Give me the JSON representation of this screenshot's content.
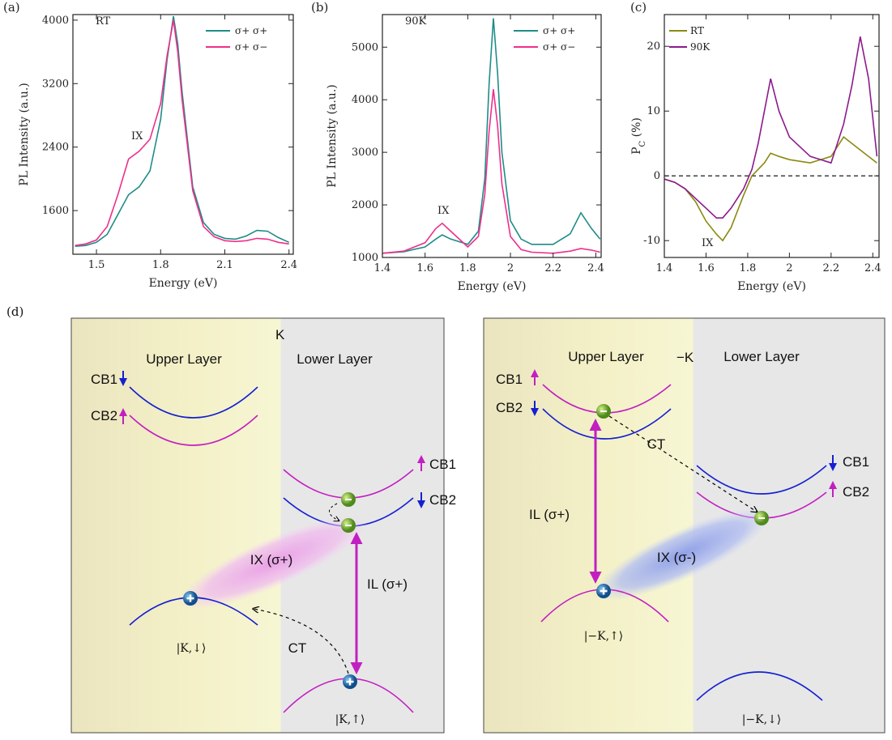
{
  "chart_data": [
    {
      "type": "line",
      "panel_label": "(a)",
      "x_label": "Energy (eV)",
      "y_label": "PL Intensity (a.u.)",
      "annotations": [
        "RT",
        "IX"
      ],
      "legend": "upper right",
      "xlim": [
        1.39,
        2.42
      ],
      "xticks": [
        1.5,
        1.8,
        2.1,
        2.4
      ],
      "ylim": [
        1050,
        4070
      ],
      "yticks": [
        1600,
        2400,
        3200,
        4000
      ],
      "x": [
        1.4,
        1.45,
        1.5,
        1.55,
        1.6,
        1.65,
        1.7,
        1.75,
        1.8,
        1.83,
        1.86,
        1.88,
        1.9,
        1.95,
        2.0,
        2.05,
        2.1,
        2.15,
        2.2,
        2.25,
        2.3,
        2.35,
        2.4
      ],
      "series": [
        {
          "name": "σ+ σ+",
          "color": "#1f8c88",
          "values": [
            1150,
            1160,
            1200,
            1300,
            1550,
            1800,
            1900,
            2100,
            2750,
            3500,
            4050,
            3700,
            3100,
            1900,
            1450,
            1300,
            1250,
            1240,
            1280,
            1350,
            1340,
            1260,
            1200
          ]
        },
        {
          "name": "σ+ σ−",
          "color": "#ee2f8c",
          "values": [
            1160,
            1180,
            1230,
            1400,
            1800,
            2250,
            2350,
            2500,
            2950,
            3550,
            4000,
            3600,
            3000,
            1850,
            1400,
            1270,
            1220,
            1210,
            1220,
            1250,
            1240,
            1200,
            1180
          ]
        }
      ]
    },
    {
      "type": "line",
      "panel_label": "(b)",
      "x_label": "Energy (eV)",
      "y_label": "PL Intensity (a.u.)",
      "annotations": [
        "90K",
        "IX"
      ],
      "legend": "upper right",
      "xlim": [
        1.4,
        2.425
      ],
      "xticks": [
        1.4,
        1.6,
        1.8,
        2.0,
        2.2,
        2.4
      ],
      "ylim": [
        1000,
        5620
      ],
      "yticks": [
        1000,
        2000,
        3000,
        4000,
        5000
      ],
      "x": [
        1.4,
        1.5,
        1.6,
        1.65,
        1.68,
        1.72,
        1.8,
        1.85,
        1.88,
        1.9,
        1.92,
        1.94,
        1.96,
        2.0,
        2.05,
        2.1,
        2.2,
        2.28,
        2.33,
        2.38,
        2.42
      ],
      "series": [
        {
          "name": "σ+ σ+",
          "color": "#1f8c88",
          "values": [
            1080,
            1110,
            1200,
            1350,
            1430,
            1350,
            1250,
            1500,
            2500,
            4300,
            5550,
            4500,
            3000,
            1700,
            1350,
            1250,
            1250,
            1450,
            1850,
            1550,
            1350
          ]
        },
        {
          "name": "σ+ σ−",
          "color": "#ee2f8c",
          "values": [
            1080,
            1120,
            1280,
            1550,
            1650,
            1500,
            1200,
            1400,
            2200,
            3400,
            4200,
            3500,
            2400,
            1400,
            1150,
            1100,
            1080,
            1120,
            1170,
            1140,
            1100
          ]
        }
      ]
    },
    {
      "type": "line",
      "panel_label": "(c)",
      "x_label": "Energy (eV)",
      "y_label": [
        "P",
        "C",
        " (%)"
      ],
      "annotations": [
        "IX"
      ],
      "legend": "upper left",
      "reference_line": 0,
      "xlim": [
        1.4,
        2.43
      ],
      "xticks": [
        1.4,
        1.6,
        1.8,
        2.0,
        2.2,
        2.4
      ],
      "ylim": [
        -12.6,
        24.9
      ],
      "yticks": [
        -10,
        0,
        10,
        20
      ],
      "x": [
        1.4,
        1.45,
        1.5,
        1.55,
        1.6,
        1.65,
        1.68,
        1.72,
        1.78,
        1.82,
        1.85,
        1.88,
        1.91,
        1.95,
        2.0,
        2.1,
        2.2,
        2.26,
        2.3,
        2.34,
        2.38,
        2.42
      ],
      "series": [
        {
          "name": "RT",
          "color": "#8a8a10",
          "values": [
            -0.5,
            -1,
            -2,
            -4,
            -7,
            -9,
            -10,
            -8,
            -3,
            0,
            1,
            2,
            3.5,
            3,
            2.5,
            2,
            3,
            6,
            5,
            4,
            3,
            2
          ]
        },
        {
          "name": "90K",
          "color": "#8c1a8c",
          "values": [
            -0.5,
            -1,
            -2,
            -3.5,
            -5,
            -6.5,
            -6.5,
            -5,
            -2,
            1,
            5,
            10,
            15,
            10,
            6,
            3,
            2,
            8,
            14,
            21.5,
            15,
            3
          ]
        }
      ]
    }
  ],
  "diagram": {
    "label": "(d)",
    "left": {
      "valley": "K",
      "upper": "Upper Layer",
      "lower": "Lower Layer",
      "cb1_u": "CB1",
      "cb2_u": "CB2",
      "cb1_l": "CB1",
      "cb2_l": "CB2",
      "ix": "IX (σ+)",
      "il": "IL (σ+)",
      "ct": "CT",
      "state_u": "|K,↓⟩",
      "state_l": "|K,↑⟩"
    },
    "right": {
      "valley": "−K",
      "upper": "Upper Layer",
      "lower": "Lower Layer",
      "cb1_u": "CB1",
      "cb2_u": "CB2",
      "cb1_l": "CB1",
      "cb2_l": "CB2",
      "ix": "IX (σ-)",
      "il": "IL (σ+)",
      "ct": "CT",
      "state_u": "|−K,↑⟩",
      "state_l": "|−K,↓⟩"
    }
  }
}
